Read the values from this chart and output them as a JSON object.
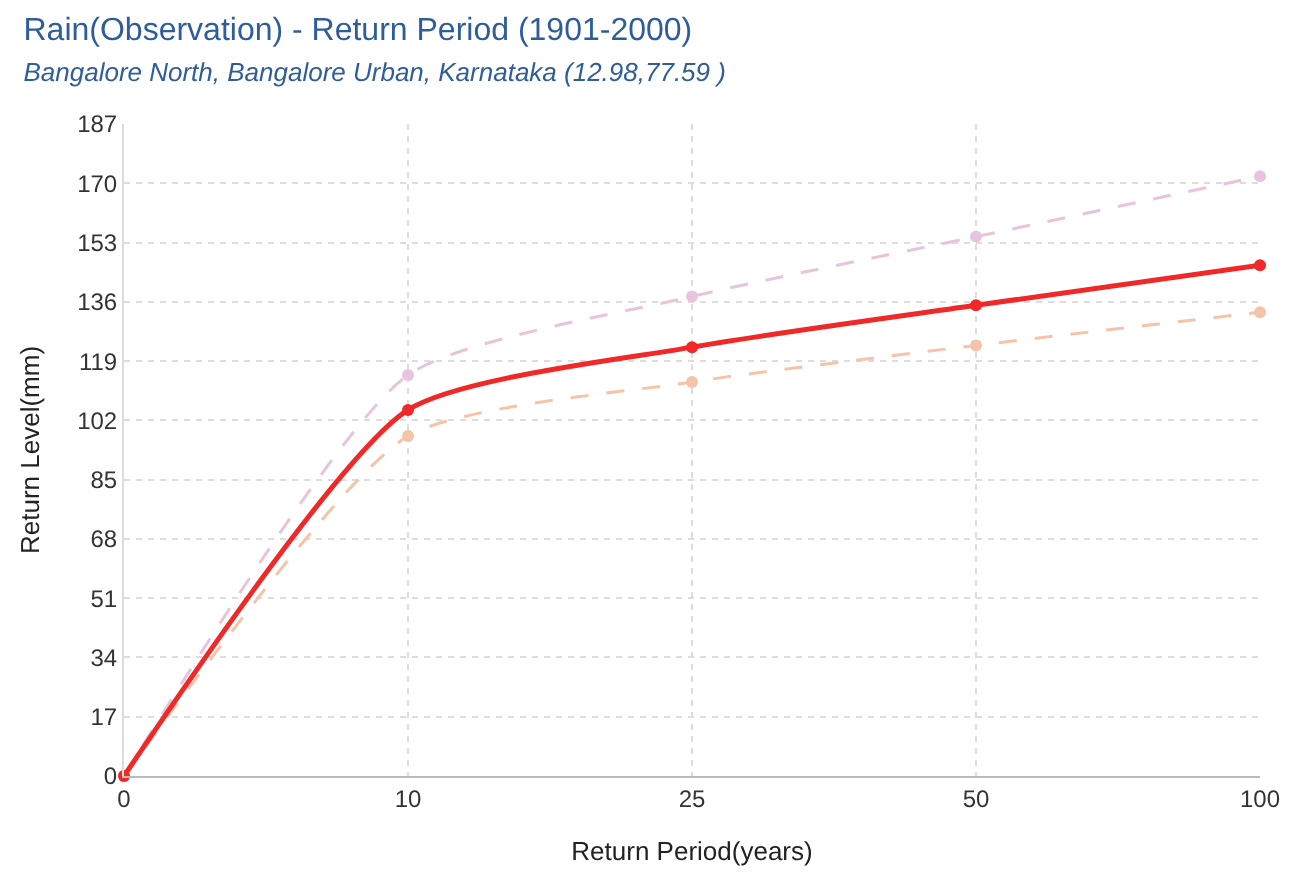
{
  "chart_data": {
    "type": "line",
    "title": "Rain(Observation) - Return Period (1901-2000)",
    "subtitle": "Bangalore North, Bangalore Urban, Karnataka (12.98,77.59 )",
    "xlabel": "Return Period(years)",
    "ylabel": "Return Level(mm)",
    "categories": [
      "0",
      "10",
      "25",
      "50",
      "100"
    ],
    "series": [
      {
        "color": "#e8c4dc",
        "values": [
          0,
          115,
          137.5,
          154.7,
          172
        ],
        "line_style": "dashed"
      },
      {
        "color": "#f5c4a8",
        "values": [
          0,
          97.5,
          113,
          123.5,
          133
        ],
        "line_style": "dashed"
      },
      {
        "color": "#f02828",
        "values": [
          0,
          105,
          123,
          135,
          146.5
        ],
        "line_style": "solid"
      }
    ],
    "ylim": [
      0,
      187
    ],
    "yticks": [
      0,
      17,
      34,
      51,
      68,
      85,
      102,
      119,
      136,
      153,
      170,
      187
    ],
    "grid": true,
    "marker": "circle"
  }
}
